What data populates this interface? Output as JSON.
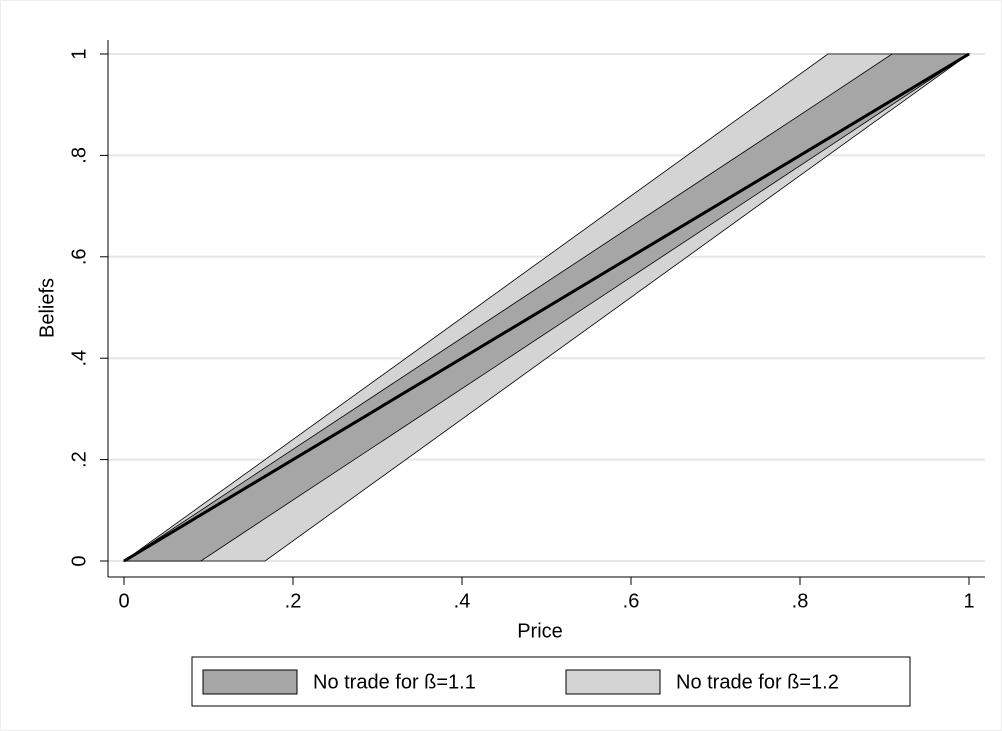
{
  "chart_data": {
    "type": "band",
    "x_label": "Price",
    "y_label": "Beliefs",
    "x": [
      0,
      0.091,
      0.167,
      0.833,
      0.909,
      1
    ],
    "series": [
      {
        "name": "No trade for ß=1.2",
        "color": "#d4d4d4",
        "upper": [
          0,
          0.109,
          0.2,
          1,
          1,
          1
        ],
        "lower": [
          0,
          0,
          0,
          0.8,
          0.891,
          1
        ]
      },
      {
        "name": "No trade for ß=1.1",
        "color": "#a6a6a6",
        "upper": [
          0,
          0.1,
          0.184,
          0.916,
          1,
          1
        ],
        "lower": [
          0,
          0,
          0.084,
          0.816,
          0.9,
          1
        ]
      }
    ],
    "line": {
      "x": [
        0,
        1
      ],
      "values": [
        0,
        1
      ],
      "color": "#000000"
    },
    "legend_order": [
      1,
      0
    ],
    "xlim": [
      0,
      1
    ],
    "ylim": [
      0,
      1
    ],
    "xticks": [
      0,
      {
        "value": 0.2,
        "label": ".2"
      },
      {
        "value": 0.4,
        "label": ".4"
      },
      {
        "value": 0.6,
        "label": ".6"
      },
      {
        "value": 0.8,
        "label": ".8"
      },
      1
    ],
    "yticks": [
      0,
      {
        "value": 0.2,
        "label": ".2"
      },
      {
        "value": 0.4,
        "label": ".4"
      },
      {
        "value": 0.6,
        "label": ".6"
      },
      {
        "value": 0.8,
        "label": ".8"
      },
      1
    ],
    "grid": true
  }
}
